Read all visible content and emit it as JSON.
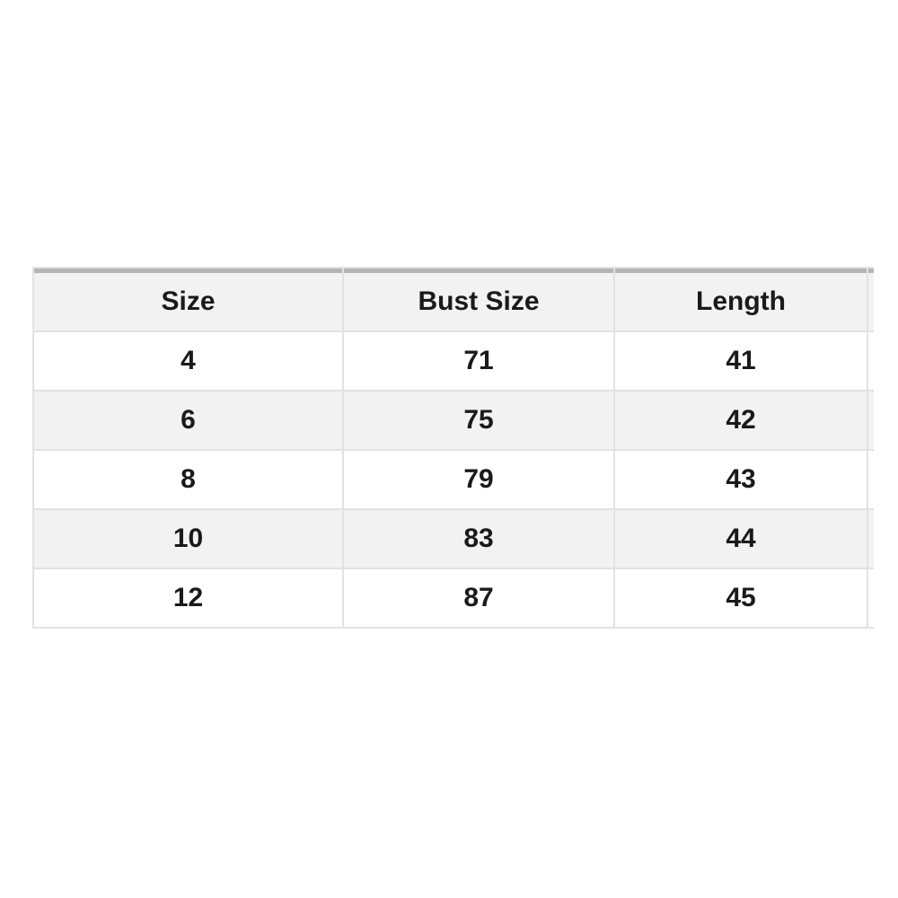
{
  "table": {
    "columns": [
      {
        "label": "Size"
      },
      {
        "label": "Bust Size"
      },
      {
        "label": "Length"
      },
      {
        "label": ""
      }
    ],
    "rows": [
      [
        "4",
        "71",
        "41"
      ],
      [
        "6",
        "75",
        "42"
      ],
      [
        "8",
        "79",
        "43"
      ],
      [
        "10",
        "83",
        "44"
      ],
      [
        "12",
        "87",
        "45"
      ]
    ]
  },
  "chart_data": {
    "type": "table",
    "title": "",
    "columns": [
      "Size",
      "Bust Size",
      "Length"
    ],
    "rows": [
      [
        4,
        71,
        41
      ],
      [
        6,
        75,
        42
      ],
      [
        8,
        79,
        43
      ],
      [
        10,
        83,
        44
      ],
      [
        12,
        87,
        45
      ]
    ],
    "layout": {
      "striped_rows": true,
      "header_top_bar": true,
      "text_align": "center"
    }
  },
  "colors": {
    "bar": "#b5b5b5",
    "stripe": "#f2f2f2",
    "border": "#e2e2e2",
    "text": "#1a1a1a",
    "cell_bg": "#ffffff",
    "page_bg": "#ffffff"
  }
}
